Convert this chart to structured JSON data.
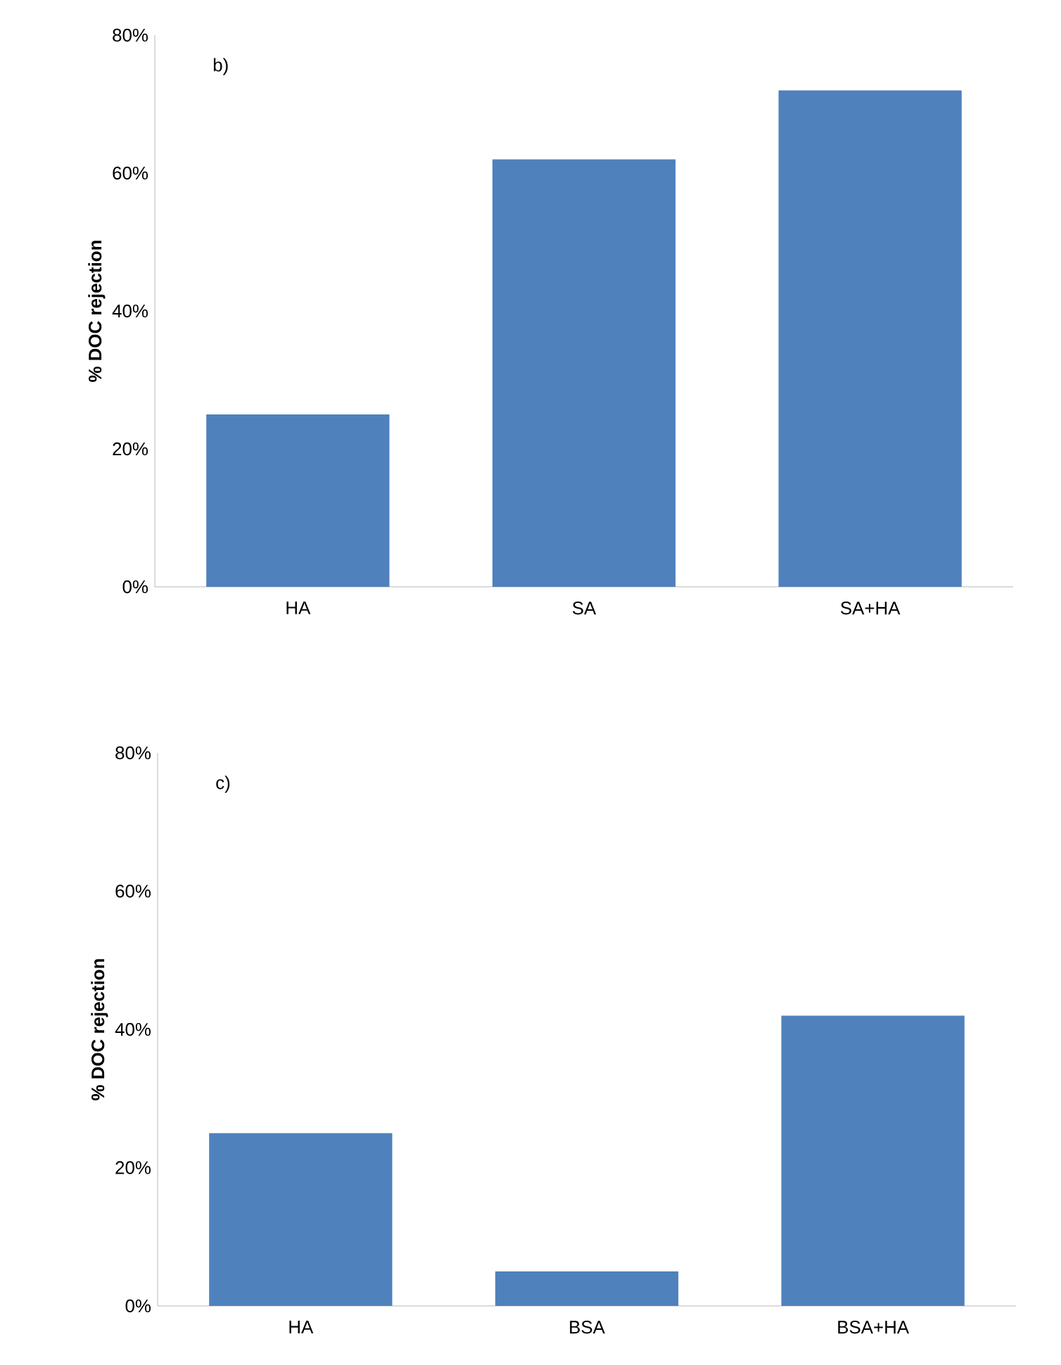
{
  "chart_data": [
    {
      "type": "bar",
      "annotations": [
        "b)"
      ],
      "ylabel": "% DOC rejection",
      "categories": [
        "HA",
        "SA",
        "SA+HA"
      ],
      "values": [
        25,
        62,
        72
      ],
      "color": "#4f81bd",
      "ylim": [
        0,
        80
      ],
      "yticks": [
        {
          "value": 0,
          "label": "0%"
        },
        {
          "value": 20,
          "label": "20%"
        },
        {
          "value": 40,
          "label": "40%"
        },
        {
          "value": 60,
          "label": "60%"
        },
        {
          "value": 80,
          "label": "80%"
        }
      ]
    },
    {
      "type": "bar",
      "annotations": [
        "c)"
      ],
      "ylabel": "% DOC rejection",
      "categories": [
        "HA",
        "BSA",
        "BSA+HA"
      ],
      "values": [
        25,
        5,
        42
      ],
      "color": "#4f81bd",
      "ylim": [
        0,
        80
      ],
      "yticks": [
        {
          "value": 0,
          "label": "0%"
        },
        {
          "value": 20,
          "label": "20%"
        },
        {
          "value": 40,
          "label": "40%"
        },
        {
          "value": 60,
          "label": "60%"
        },
        {
          "value": 80,
          "label": "80%"
        }
      ]
    }
  ]
}
